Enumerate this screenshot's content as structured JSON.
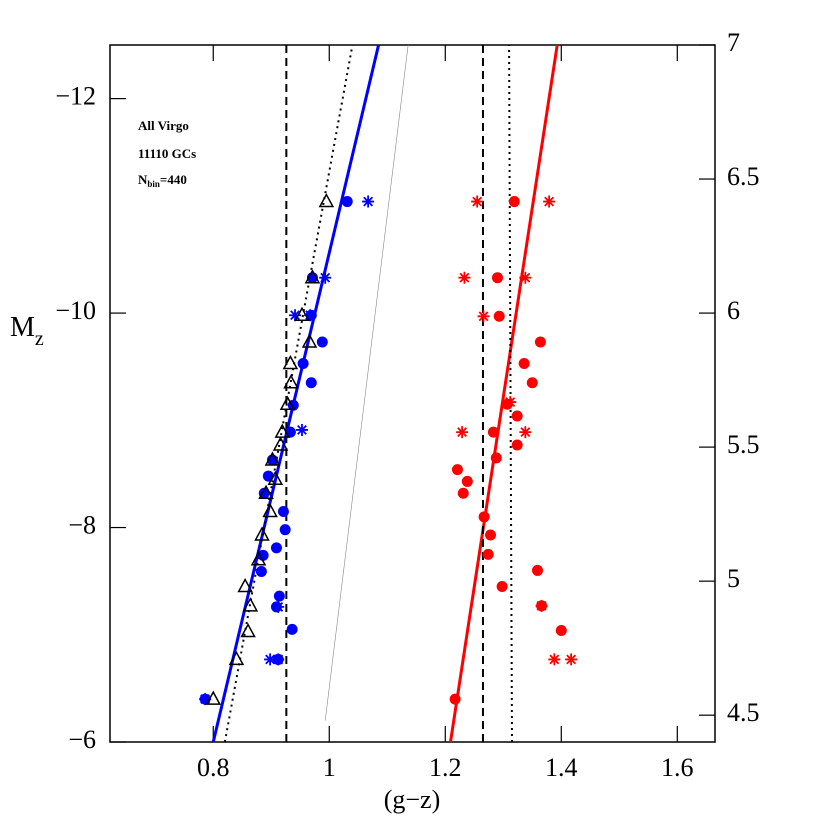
{
  "chart_data": {
    "type": "scatter",
    "xlabel": "(g−z)",
    "ylabel": [
      "M",
      "z"
    ],
    "annotations": [
      "All Virgo",
      "11110 GCs"
    ],
    "annotation_nbin": [
      "N",
      "bin",
      "=440"
    ],
    "xlim": [
      0.622,
      1.665
    ],
    "ylim": [
      -6,
      -12.5
    ],
    "y2lim": [
      4.4,
      7.0
    ],
    "xticks": [
      0.8,
      1,
      1.2,
      1.4,
      1.6
    ],
    "yticks": [
      {
        "value": -12,
        "label": "−12"
      },
      {
        "value": -10,
        "label": "−10"
      },
      {
        "value": -8,
        "label": "−8"
      },
      {
        "value": -6,
        "label": "−6"
      }
    ],
    "y2ticks": [
      7,
      6.5,
      6,
      5.5,
      5,
      4.5
    ],
    "lines": [
      {
        "color": "#0000ff",
        "style": "solid",
        "x": [
          0.8,
          1.085
        ],
        "y": [
          -6,
          -12.5
        ]
      },
      {
        "color": "#000000",
        "style": "dotted",
        "x": [
          0.82,
          1.04
        ],
        "y": [
          -6,
          -12.5
        ]
      },
      {
        "color": "#000000",
        "style": "dashed",
        "x": [
          0.926,
          0.926
        ],
        "y": [
          -6,
          -12.5
        ]
      },
      {
        "color": "#888888",
        "style": "thin",
        "x": [
          0.993,
          1.136
        ],
        "y": [
          -6.2,
          -12.5
        ]
      },
      {
        "color": "#ff0000",
        "style": "solid",
        "x": [
          1.209,
          1.393
        ],
        "y": [
          -6,
          -12.5
        ]
      },
      {
        "color": "#000000",
        "style": "dashed",
        "x": [
          1.265,
          1.265
        ],
        "y": [
          -6,
          -12.5
        ]
      },
      {
        "color": "#000000",
        "style": "dotted",
        "x": [
          1.315,
          1.31
        ],
        "y": [
          -6,
          -12.5
        ]
      }
    ],
    "series": [
      {
        "color": "#0000ff",
        "marker": "circle",
        "x": [
          1.031,
          0.971,
          0.969,
          0.988,
          0.955,
          0.969,
          0.938,
          0.933,
          0.902,
          0.895,
          0.888,
          0.921,
          0.924,
          0.909,
          0.886,
          0.883,
          0.914,
          0.909,
          0.936,
          0.912,
          0.786
        ],
        "y": [
          -11.04,
          -10.33,
          -9.98,
          -9.73,
          -9.53,
          -9.35,
          -9.14,
          -8.89,
          -8.63,
          -8.48,
          -8.32,
          -8.15,
          -7.98,
          -7.81,
          -7.74,
          -7.59,
          -7.36,
          -7.26,
          -7.05,
          -6.77,
          -6.4
        ]
      },
      {
        "color": "#0000ff",
        "marker": "asterisk",
        "x": [
          1.067,
          0.993,
          0.967,
          0.941,
          0.953,
          0.912,
          0.912,
          0.898,
          0.786
        ],
        "y": [
          -11.04,
          -10.33,
          -9.98,
          -9.98,
          -8.91,
          -7.26,
          -6.77,
          -6.77,
          -6.4
        ]
      },
      {
        "color": "#000000",
        "marker": "triangle",
        "x": [
          0.995,
          0.971,
          0.953,
          0.966,
          0.933,
          0.934,
          0.928,
          0.919,
          0.916,
          0.902,
          0.907,
          0.891,
          0.898,
          0.884,
          0.878,
          0.855,
          0.864,
          0.86,
          0.84,
          0.8
        ],
        "y": [
          -11.04,
          -10.33,
          -9.98,
          -9.73,
          -9.53,
          -9.35,
          -9.15,
          -8.89,
          -8.77,
          -8.63,
          -8.45,
          -8.32,
          -8.15,
          -7.93,
          -7.7,
          -7.45,
          -7.27,
          -7.03,
          -6.77,
          -6.4
        ]
      },
      {
        "color": "#ff0000",
        "marker": "circle",
        "x": [
          1.319,
          1.29,
          1.293,
          1.364,
          1.336,
          1.35,
          1.307,
          1.324,
          1.283,
          1.324,
          1.221,
          1.288,
          1.238,
          1.231,
          1.267,
          1.278,
          1.274,
          1.359,
          1.298,
          1.366,
          1.4,
          1.217
        ],
        "y": [
          -11.04,
          -10.33,
          -9.97,
          -9.73,
          -9.53,
          -9.35,
          -9.15,
          -9.04,
          -8.89,
          -8.77,
          -8.54,
          -8.65,
          -8.43,
          -8.32,
          -8.1,
          -7.93,
          -7.75,
          -7.6,
          -7.45,
          -7.27,
          -7.04,
          -6.4
        ]
      },
      {
        "color": "#ff0000",
        "marker": "asterisk",
        "x": [
          1.255,
          1.379,
          1.233,
          1.338,
          1.266,
          1.229,
          1.338,
          1.312,
          1.417,
          1.388,
          1.366
        ],
        "y": [
          -11.04,
          -11.04,
          -10.33,
          -10.33,
          -9.97,
          -8.89,
          -8.89,
          -9.17,
          -6.77,
          -6.77,
          -7.27
        ]
      }
    ]
  }
}
